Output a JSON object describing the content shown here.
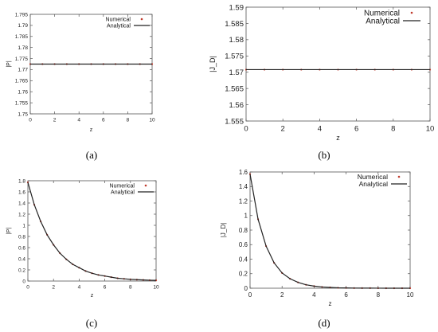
{
  "chart_data": [
    {
      "panel": "(a)",
      "type": "line",
      "xlabel": "z",
      "ylabel": "|P|",
      "xlim": [
        0,
        10
      ],
      "ylim": [
        1.75,
        1.795
      ],
      "xticks": [
        "0",
        "2",
        "4",
        "6",
        "8",
        "10"
      ],
      "yticks": [
        "1.75",
        "1.755",
        "1.76",
        "1.765",
        "1.77",
        "1.775",
        "1.78",
        "1.785",
        "1.79",
        "1.795"
      ],
      "grid": false,
      "legend": "top-right",
      "series": [
        {
          "name": "Numerical",
          "style": "points",
          "color": "#c0392b",
          "x": [
            0,
            1,
            2,
            3,
            4,
            5,
            6,
            7,
            8,
            9,
            10
          ],
          "y": [
            1.7725,
            1.7725,
            1.7725,
            1.7725,
            1.7725,
            1.7725,
            1.7725,
            1.7725,
            1.7725,
            1.7725,
            1.7725
          ]
        },
        {
          "name": "Analytical",
          "style": "line",
          "color": "#222222",
          "x": [
            0,
            10
          ],
          "y": [
            1.7725,
            1.7725
          ]
        }
      ]
    },
    {
      "panel": "(b)",
      "type": "line",
      "xlabel": "z",
      "ylabel": "|J_D|",
      "xlim": [
        0,
        10
      ],
      "ylim": [
        1.555,
        1.59
      ],
      "xticks": [
        "0",
        "2",
        "4",
        "6",
        "8",
        "10"
      ],
      "yticks": [
        "1.555",
        "1.56",
        "1.565",
        "1.57",
        "1.575",
        "1.58",
        "1.585",
        "1.59"
      ],
      "grid": false,
      "legend": "top-right",
      "series": [
        {
          "name": "Numerical",
          "style": "points",
          "color": "#c0392b",
          "x": [
            0,
            1,
            2,
            3,
            4,
            5,
            6,
            7,
            8,
            9,
            10
          ],
          "y": [
            1.5708,
            1.5708,
            1.5708,
            1.5708,
            1.5708,
            1.5708,
            1.5708,
            1.5708,
            1.5708,
            1.5708,
            1.5708
          ]
        },
        {
          "name": "Analytical",
          "style": "line",
          "color": "#222222",
          "x": [
            0,
            10
          ],
          "y": [
            1.5708,
            1.5708
          ]
        }
      ]
    },
    {
      "panel": "(c)",
      "type": "line",
      "xlabel": "z",
      "ylabel": "|P|",
      "xlim": [
        0,
        10
      ],
      "ylim": [
        0,
        1.8
      ],
      "xticks": [
        "0",
        "2",
        "4",
        "6",
        "8",
        "10"
      ],
      "yticks": [
        "0",
        "0.2",
        "0.4",
        "0.6",
        "0.8",
        "1",
        "1.2",
        "1.4",
        "1.6",
        "1.8"
      ],
      "grid": false,
      "legend": "top-right",
      "series": [
        {
          "name": "Numerical",
          "style": "points",
          "color": "#c0392b",
          "x": [
            0,
            0.5,
            1,
            1.5,
            2,
            2.5,
            3,
            3.5,
            4,
            4.5,
            5,
            5.5,
            6,
            6.5,
            7,
            7.5,
            8,
            8.5,
            9,
            9.5,
            10
          ],
          "y": [
            1.77,
            1.37,
            1.07,
            0.83,
            0.65,
            0.5,
            0.39,
            0.3,
            0.24,
            0.18,
            0.14,
            0.11,
            0.09,
            0.07,
            0.05,
            0.04,
            0.03,
            0.025,
            0.02,
            0.015,
            0.012
          ]
        },
        {
          "name": "Analytical",
          "style": "line",
          "color": "#222222",
          "x": [
            0,
            0.5,
            1,
            1.5,
            2,
            2.5,
            3,
            3.5,
            4,
            4.5,
            5,
            5.5,
            6,
            6.5,
            7,
            7.5,
            8,
            8.5,
            9,
            9.5,
            10
          ],
          "y": [
            1.77,
            1.37,
            1.07,
            0.83,
            0.65,
            0.5,
            0.39,
            0.3,
            0.24,
            0.18,
            0.14,
            0.11,
            0.09,
            0.07,
            0.05,
            0.04,
            0.03,
            0.025,
            0.02,
            0.015,
            0.012
          ]
        }
      ]
    },
    {
      "panel": "(d)",
      "type": "line",
      "xlabel": "z",
      "ylabel": "|J_D|",
      "xlim": [
        0,
        10
      ],
      "ylim": [
        0,
        1.6
      ],
      "xticks": [
        "0",
        "2",
        "4",
        "6",
        "8",
        "10"
      ],
      "yticks": [
        "0",
        "0.2",
        "0.4",
        "0.6",
        "0.8",
        "1",
        "1.2",
        "1.4",
        "1.6"
      ],
      "grid": false,
      "legend": "top-right",
      "series": [
        {
          "name": "Numerical",
          "style": "points",
          "color": "#c0392b",
          "x": [
            0,
            0.5,
            1,
            1.5,
            2,
            2.5,
            3,
            3.5,
            4,
            4.5,
            5,
            5.5,
            6,
            6.5,
            7,
            7.5,
            8,
            8.5,
            9,
            9.5,
            10
          ],
          "y": [
            1.57,
            0.95,
            0.58,
            0.35,
            0.21,
            0.13,
            0.08,
            0.047,
            0.029,
            0.017,
            0.011,
            0.006,
            0.004,
            0.002,
            0.0015,
            0.001,
            0.0005,
            0.0003,
            0.0002,
            0.0001,
            0.0001
          ]
        },
        {
          "name": "Analytical",
          "style": "line",
          "color": "#222222",
          "x": [
            0,
            0.5,
            1,
            1.5,
            2,
            2.5,
            3,
            3.5,
            4,
            4.5,
            5,
            5.5,
            6,
            6.5,
            7,
            7.5,
            8,
            8.5,
            9,
            9.5,
            10
          ],
          "y": [
            1.57,
            0.95,
            0.58,
            0.35,
            0.21,
            0.13,
            0.08,
            0.047,
            0.029,
            0.017,
            0.011,
            0.006,
            0.004,
            0.002,
            0.0015,
            0.001,
            0.0005,
            0.0003,
            0.0002,
            0.0001,
            0.0001
          ]
        }
      ]
    }
  ]
}
